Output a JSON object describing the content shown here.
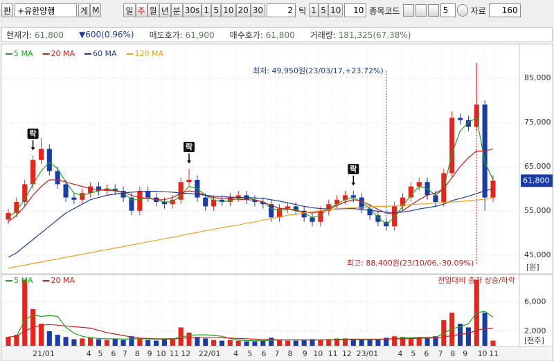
{
  "toolbar": {
    "search": "판",
    "stock_name": "+유한양행",
    "view_buttons": [
      "게",
      "M"
    ],
    "periods": [
      "일",
      "주",
      "월",
      "년",
      "분",
      "30s",
      "1",
      "5",
      "10",
      "20",
      "30"
    ],
    "tick_input": "2",
    "tick_label": "틱",
    "tick_buttons": [
      "1",
      "5",
      "10"
    ],
    "tick_count": "10",
    "code_label": "종목코드",
    "count_input": "5",
    "data_label": "자료",
    "data_count": "160"
  },
  "info": {
    "price_label": "현재가:",
    "price": "61,800",
    "change": "▼600(0.96%)",
    "ask_label": "매도호가:",
    "ask": "61,900",
    "bid_label": "매수호가:",
    "bid": "61,800",
    "volume_label": "거래량:",
    "volume": "181,325(67.38%)"
  },
  "chart_data": {
    "type": "candlestick",
    "up_color": "#e8241c",
    "down_color": "#1a3ca8",
    "candles": {
      "open": [
        53000,
        54500,
        57000,
        61000,
        66500,
        69000,
        64000,
        61000,
        58000,
        57500,
        59000,
        60500,
        59500,
        60000,
        59500,
        58000,
        55000,
        59500,
        58000,
        57000,
        56500,
        57500,
        61500,
        62000,
        58000,
        56000,
        57500,
        57000,
        58000,
        58500,
        57500,
        57000,
        56500,
        53500,
        55500,
        56000,
        55000,
        53500,
        52500,
        55000,
        56500,
        57500,
        58500,
        58000,
        55500,
        54000,
        52500,
        51500,
        56000,
        58000,
        60500,
        61500,
        58500,
        57000,
        63500,
        76000,
        75500,
        74000,
        79000,
        58000
      ],
      "high": [
        55500,
        58000,
        62000,
        67500,
        71500,
        70000,
        65000,
        62000,
        59000,
        60000,
        61500,
        61500,
        61000,
        61000,
        60500,
        59000,
        60500,
        60500,
        59000,
        58000,
        58500,
        62500,
        64500,
        63000,
        59000,
        58500,
        58500,
        59000,
        59500,
        59500,
        58500,
        58000,
        57500,
        56500,
        57000,
        57000,
        56000,
        54500,
        56000,
        57500,
        58500,
        59500,
        59500,
        59000,
        56500,
        55000,
        53500,
        57000,
        59000,
        61500,
        62500,
        62500,
        59500,
        64500,
        77500,
        77000,
        76500,
        88400,
        80000,
        63000
      ],
      "low": [
        52000,
        53500,
        56000,
        60000,
        65500,
        63000,
        60000,
        57000,
        56500,
        56500,
        58000,
        58500,
        58500,
        58500,
        57000,
        54000,
        54000,
        57000,
        56000,
        55500,
        55500,
        56500,
        60500,
        57000,
        55000,
        55000,
        56000,
        56000,
        57000,
        56500,
        56000,
        55500,
        52500,
        52500,
        54500,
        54000,
        52500,
        51500,
        51500,
        54000,
        55500,
        56500,
        57000,
        54500,
        53000,
        51500,
        50500,
        50500,
        55000,
        57000,
        59500,
        57500,
        56000,
        56000,
        62500,
        74500,
        73000,
        73000,
        55000,
        57000
      ],
      "close": [
        54500,
        57000,
        61000,
        66500,
        69000,
        64000,
        61000,
        58000,
        57500,
        59000,
        60500,
        59500,
        60000,
        59500,
        58000,
        55000,
        59500,
        58000,
        57000,
        56500,
        57500,
        61500,
        62000,
        58000,
        56000,
        57500,
        57000,
        58000,
        58500,
        57500,
        57000,
        56500,
        53500,
        55500,
        56000,
        55000,
        53500,
        52500,
        55000,
        56500,
        57500,
        58500,
        58000,
        55500,
        54000,
        52500,
        51500,
        56000,
        58000,
        60500,
        61500,
        58500,
        57000,
        63500,
        76000,
        75500,
        74000,
        79000,
        58000,
        61800
      ]
    },
    "series": [
      {
        "name": "5 MA",
        "color": "#1fa51f",
        "values": [
          53500,
          55000,
          57500,
          61000,
          64000,
          66000,
          64500,
          61500,
          59000,
          58500,
          59000,
          59500,
          60000,
          59800,
          59000,
          57500,
          57500,
          58000,
          57500,
          57000,
          57000,
          58500,
          60500,
          60000,
          58500,
          57500,
          57000,
          57300,
          57800,
          58000,
          57500,
          57000,
          55500,
          55000,
          55300,
          55300,
          54500,
          53500,
          54000,
          55500,
          56500,
          57500,
          58000,
          57000,
          55500,
          53500,
          52000,
          53500,
          56000,
          58500,
          60500,
          60000,
          58500,
          60000,
          68000,
          73000,
          75000,
          76000,
          66000,
          62000
        ]
      },
      {
        "name": "20 MA",
        "color": "#c8201e",
        "values": [
          52500,
          54000,
          56000,
          58500,
          60500,
          62000,
          62000,
          61500,
          61000,
          60500,
          60000,
          59800,
          59600,
          59500,
          59200,
          58500,
          58000,
          57800,
          57500,
          57500,
          58000,
          59000,
          59500,
          59200,
          58500,
          58000,
          57800,
          57700,
          57600,
          57500,
          57400,
          57000,
          56200,
          55600,
          55400,
          55000,
          54700,
          54500,
          54800,
          55400,
          56200,
          57000,
          57500,
          57200,
          56300,
          55300,
          54500,
          54300,
          55000,
          56300,
          57500,
          58500,
          59000,
          60000,
          62500,
          65000,
          67000,
          68500,
          68500,
          69000
        ]
      },
      {
        "name": "60 MA",
        "color": "#1c3c9c",
        "values": [
          44500,
          45500,
          47000,
          48500,
          50000,
          51500,
          53000,
          54500,
          55500,
          56500,
          57500,
          58000,
          58500,
          58800,
          59000,
          59200,
          59300,
          59400,
          59400,
          59300,
          59200,
          59000,
          58900,
          58700,
          58500,
          58300,
          58200,
          58100,
          58000,
          58000,
          57900,
          57800,
          57500,
          57200,
          56800,
          56400,
          56000,
          55700,
          55500,
          55400,
          55400,
          55500,
          55500,
          55300,
          55100,
          54900,
          54700,
          54600,
          54700,
          55000,
          55400,
          55700,
          56000,
          56500,
          57300,
          57800,
          58300,
          58900,
          59500,
          60000
        ]
      },
      {
        "name": "120 MA",
        "color": "#f0a020",
        "values": [
          42000,
          42400,
          42700,
          43100,
          43400,
          43800,
          44100,
          44500,
          44800,
          45200,
          45500,
          45900,
          46200,
          46600,
          46900,
          47300,
          47600,
          48000,
          48300,
          48700,
          49000,
          49400,
          49800,
          50100,
          50500,
          50800,
          51200,
          51500,
          51800,
          52200,
          52500,
          52900,
          53200,
          53600,
          54000,
          54200,
          54500,
          54800,
          55000,
          55300,
          55500,
          55600,
          55700,
          55800,
          55900,
          56000,
          56000,
          56100,
          56300,
          56400,
          56500,
          56600,
          56800,
          56900,
          57000,
          57100,
          57300,
          57400,
          57600,
          57800
        ]
      }
    ],
    "ylim": [
      40900,
      91700
    ],
    "yticks": [
      {
        "value": 45000,
        "label": "45,000"
      },
      {
        "value": 55000,
        "label": "55,000"
      },
      {
        "value": 65000,
        "label": "65,000"
      },
      {
        "value": 75000,
        "label": "75,000"
      },
      {
        "value": 85000,
        "label": "85,000"
      }
    ],
    "y_unit": "[원]",
    "last_label": "61,800",
    "grid": true,
    "annotations": [
      "최저: 49,950원(23/03/17,+23.72%)",
      "최고: 88,400원(23/10/06,-30.09%)"
    ],
    "markers": [
      "락",
      "락",
      "락"
    ],
    "xticks": [
      {
        "value": 4.3,
        "label": "21/01"
      },
      {
        "value": 9.8,
        "label": "4"
      },
      {
        "value": 11.2,
        "label": "5"
      },
      {
        "value": 12.8,
        "label": "6"
      },
      {
        "value": 14.2,
        "label": "7"
      },
      {
        "value": 15.7,
        "label": "8"
      },
      {
        "value": 17.2,
        "label": "9"
      },
      {
        "value": 18.6,
        "label": "10"
      },
      {
        "value": 20.2,
        "label": "11"
      },
      {
        "value": 21.6,
        "label": "12"
      },
      {
        "value": 24.5,
        "label": "22/01"
      },
      {
        "value": 27.7,
        "label": "4"
      },
      {
        "value": 29.4,
        "label": "5"
      },
      {
        "value": 31.1,
        "label": "6"
      },
      {
        "value": 32.7,
        "label": "7"
      },
      {
        "value": 34.3,
        "label": "8"
      },
      {
        "value": 36.1,
        "label": "9"
      },
      {
        "value": 37.7,
        "label": "10"
      },
      {
        "value": 39.5,
        "label": "11"
      },
      {
        "value": 41.2,
        "label": "12"
      },
      {
        "value": 43.7,
        "label": "23/01"
      },
      {
        "value": 47.7,
        "label": "4"
      },
      {
        "value": 49.3,
        "label": "5"
      },
      {
        "value": 50.9,
        "label": "6"
      },
      {
        "value": 52.6,
        "label": "7"
      },
      {
        "value": 54.1,
        "label": "8"
      },
      {
        "value": 55.6,
        "label": "9"
      },
      {
        "value": 57.7,
        "label": "10"
      },
      {
        "value": 59.1,
        "label": "11"
      }
    ],
    "volume": {
      "values": [
        1200,
        1500,
        9000,
        5000,
        3000,
        2000,
        1500,
        1200,
        900,
        1000,
        1100,
        900,
        800,
        900,
        800,
        1300,
        1000,
        800,
        700,
        900,
        1000,
        2500,
        1800,
        1200,
        1000,
        800,
        700,
        800,
        700,
        600,
        600,
        700,
        1100,
        800,
        700,
        700,
        800,
        900,
        800,
        900,
        1000,
        1000,
        800,
        900,
        800,
        900,
        1100,
        1300,
        1200,
        1100,
        1200,
        1000,
        1300,
        3500,
        4500,
        3000,
        2500,
        9000,
        4500,
        700
      ],
      "series": [
        {
          "name": "5 MA",
          "color": "#1fa51f",
          "values": [
            1200,
            1300,
            3500,
            4200,
            4000,
            4100,
            4000,
            2500,
            1700,
            1300,
            1100,
            1000,
            950,
            950,
            900,
            950,
            950,
            950,
            900,
            900,
            900,
            1200,
            1400,
            1500,
            1500,
            1400,
            1300,
            1000,
            800,
            700,
            700,
            700,
            750,
            800,
            800,
            800,
            800,
            800,
            800,
            800,
            850,
            900,
            900,
            900,
            900,
            900,
            900,
            1000,
            1050,
            1100,
            1150,
            1150,
            1150,
            1700,
            2300,
            2600,
            3000,
            4500,
            4700,
            3900
          ]
        },
        {
          "name": "20 MA",
          "color": "#c8201e",
          "values": [
            1200,
            1300,
            2000,
            2500,
            2800,
            2900,
            2800,
            2700,
            2600,
            2500,
            2400,
            2100,
            1800,
            1600,
            1400,
            1200,
            1050,
            1000,
            950,
            950,
            950,
            1000,
            1100,
            1150,
            1150,
            1150,
            1100,
            1050,
            1000,
            950,
            900,
            850,
            850,
            800,
            800,
            800,
            800,
            800,
            800,
            800,
            800,
            850,
            850,
            850,
            850,
            850,
            900,
            950,
            950,
            1000,
            1000,
            1050,
            1050,
            1200,
            1400,
            1550,
            1700,
            2100,
            2350,
            2400
          ]
        }
      ],
      "ylim": [
        0,
        9600
      ],
      "yticks": [
        {
          "value": 2000,
          "label": "2,000"
        },
        {
          "value": 6000,
          "label": "6,000"
        }
      ],
      "y_unit": "[천주]",
      "note": "전일대비 증가 상승/하락"
    }
  }
}
